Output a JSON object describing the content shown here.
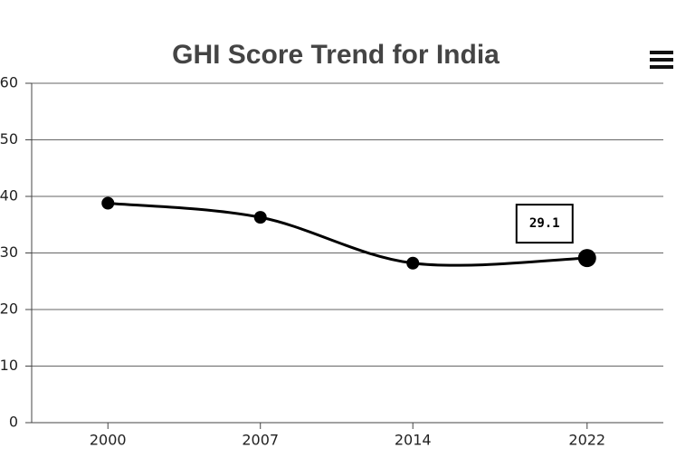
{
  "chart_data": {
    "type": "line",
    "title": "GHI Score Trend for India",
    "x": [
      2000,
      2007,
      2014,
      2022
    ],
    "series": [
      {
        "values": [
          38.8,
          36.3,
          28.2,
          29.1
        ],
        "color": "#000000"
      }
    ],
    "xlim": [
      1996.5,
      2025.5
    ],
    "xticks": [
      2000,
      2007,
      2014,
      2022
    ],
    "ylim": [
      0,
      60
    ],
    "yticks": [
      0,
      10,
      20,
      30,
      40,
      50,
      60
    ],
    "grid": true,
    "labeled_point": 3
  }
}
